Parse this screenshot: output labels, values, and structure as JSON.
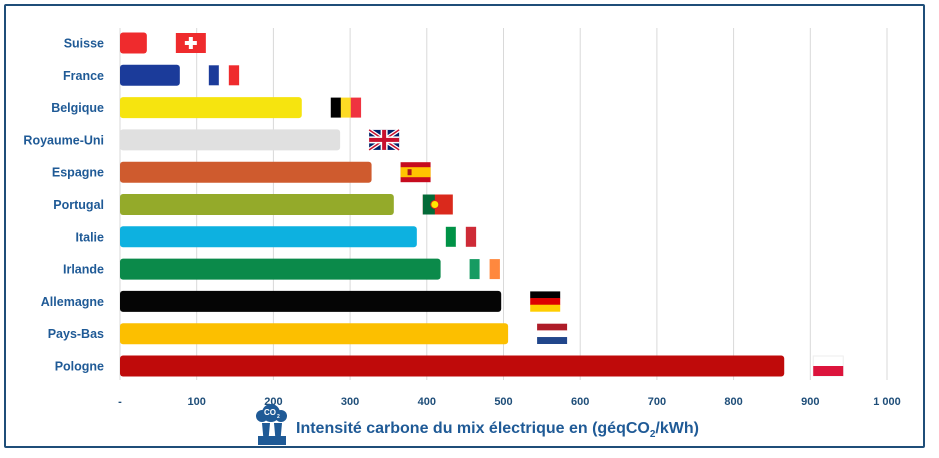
{
  "chart_data": {
    "type": "bar",
    "orientation": "horizontal",
    "categories": [
      "Suisse",
      "France",
      "Belgique",
      "Royaume-Uni",
      "Espagne",
      "Portugal",
      "Italie",
      "Irlande",
      "Allemagne",
      "Pays-Bas",
      "Pologne"
    ],
    "values": [
      35,
      78,
      237,
      287,
      328,
      357,
      387,
      418,
      497,
      506,
      866
    ],
    "colors": [
      "#ef2b2d",
      "#1b3b9a",
      "#f6e40f",
      "#e0e0e0",
      "#cf5b2e",
      "#94aa2a",
      "#0db1e0",
      "#0b8a4a",
      "#050505",
      "#fcbf00",
      "#bf0a0a"
    ],
    "flags": [
      "ch",
      "fr",
      "be",
      "gb",
      "es",
      "pt",
      "it",
      "ie",
      "de",
      "nl",
      "pl"
    ],
    "xlim": [
      0,
      1000
    ],
    "xticks": [
      0,
      100,
      200,
      300,
      400,
      500,
      600,
      700,
      800,
      900,
      1000
    ],
    "xtick_labels": [
      "-",
      "100",
      "200",
      "300",
      "400",
      "500",
      "600",
      "700",
      "800",
      "900",
      "1 000"
    ],
    "xlabel": "Intensité carbone du mix électrique en (géqCO",
    "xlabel_sub": "2",
    "xlabel_end": "/kWh)",
    "icon_label": "CO",
    "icon_label_sub": "2",
    "grid": true,
    "title": ""
  }
}
